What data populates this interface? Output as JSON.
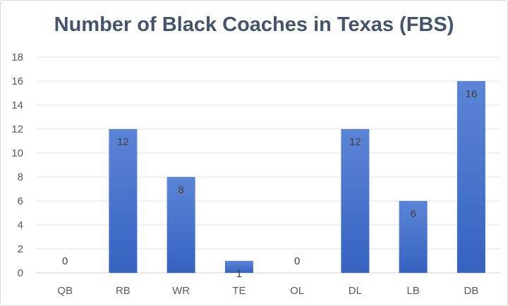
{
  "chart_data": {
    "type": "bar",
    "title": "Number of Black Coaches in Texas (FBS)",
    "categories": [
      "QB",
      "RB",
      "WR",
      "TE",
      "OL",
      "DL",
      "LB",
      "DB"
    ],
    "values": [
      0,
      12,
      8,
      1,
      0,
      12,
      6,
      16
    ],
    "yticks": [
      "0",
      "2",
      "4",
      "6",
      "8",
      "10",
      "12",
      "14",
      "16",
      "18"
    ],
    "ylim": [
      0,
      18
    ],
    "xlabel": "",
    "ylabel": "",
    "grid": true,
    "legend": "none",
    "bar_color_top": "#5b85d6",
    "bar_color_bottom": "#3563c0",
    "data_labels": true
  }
}
